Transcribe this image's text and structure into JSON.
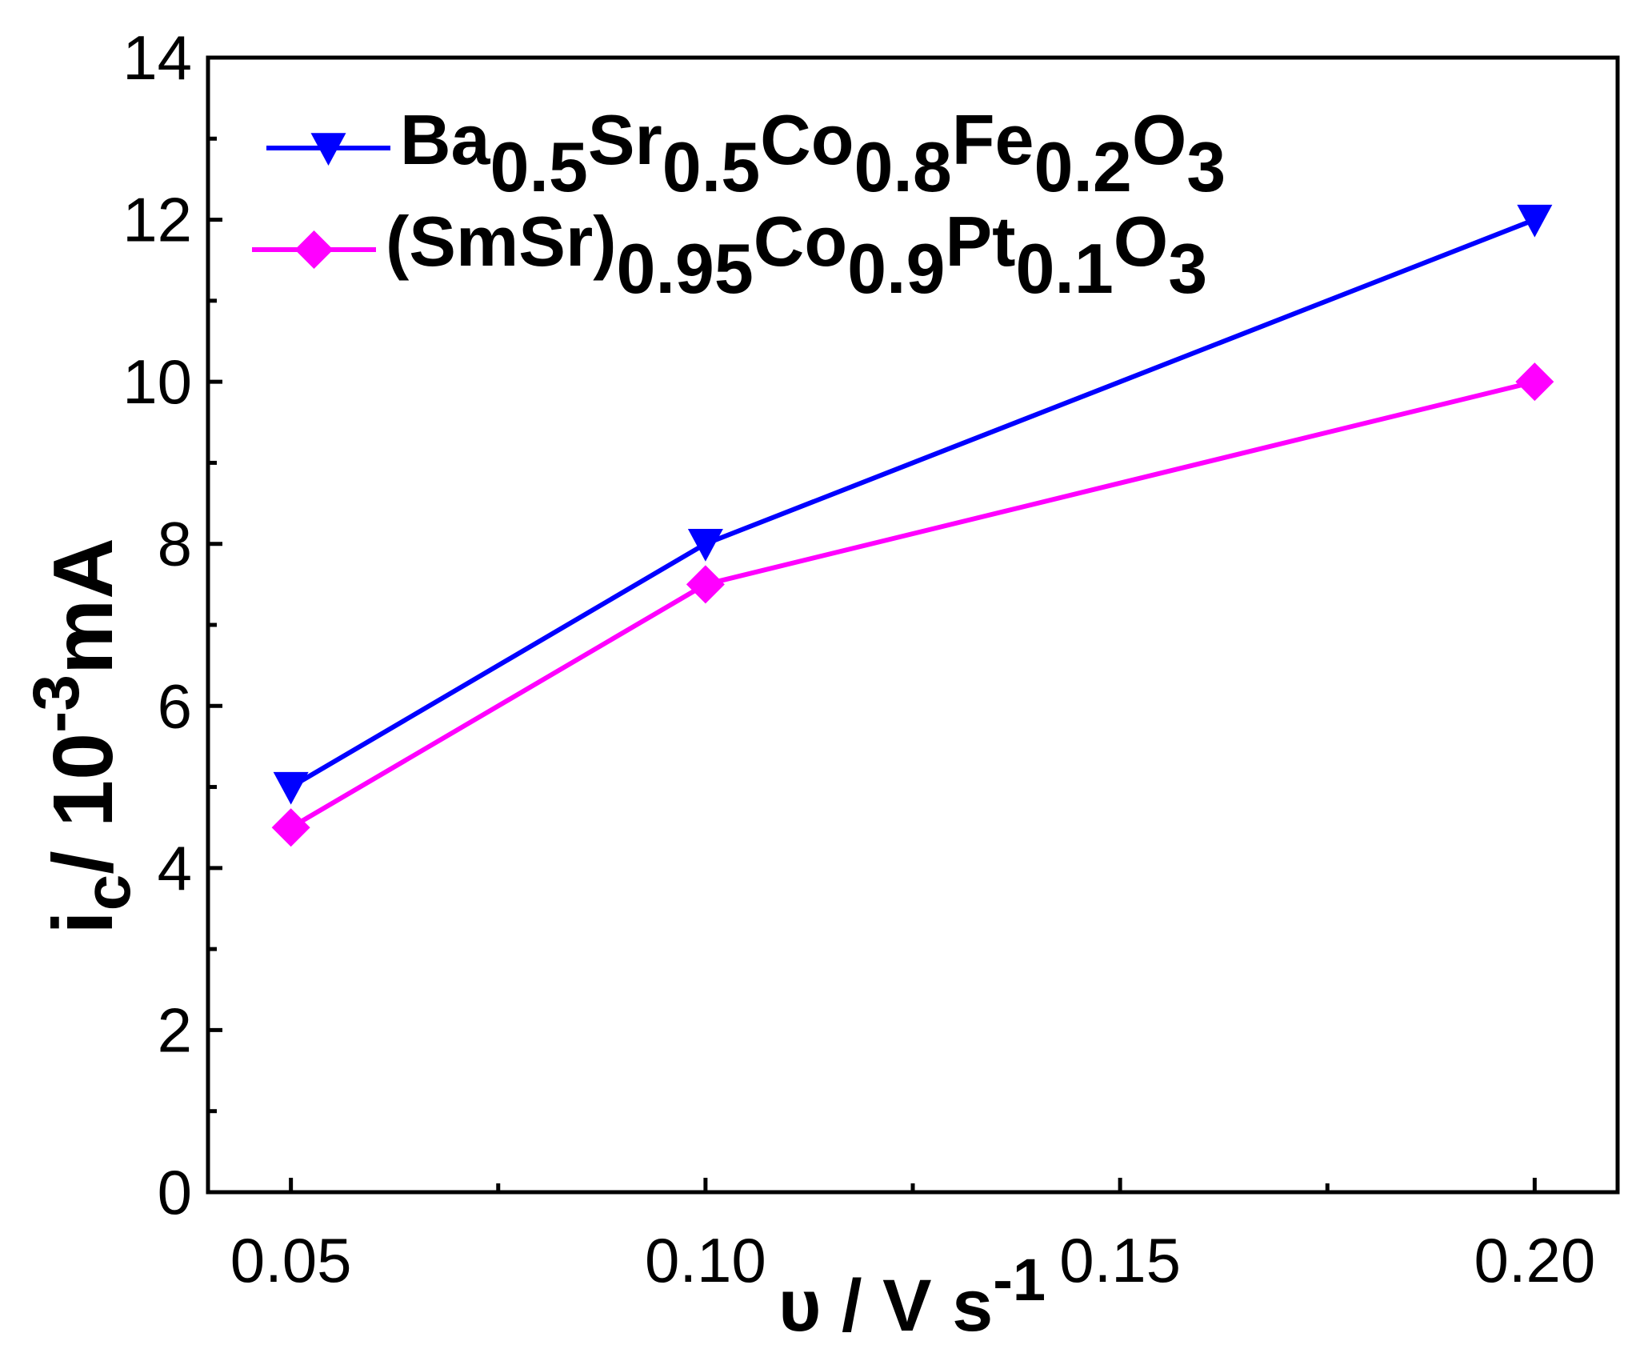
{
  "chart_data": {
    "type": "line",
    "title": "",
    "xlabel": {
      "main": "υ / V s",
      "sup": "-1"
    },
    "ylabel": {
      "main": "i",
      "sub": "c",
      "after_sub": "/ 10",
      "sup": "-3",
      "tail": "mA"
    },
    "xlim": [
      0.04,
      0.21
    ],
    "ylim": [
      0,
      14
    ],
    "x_ticks": [
      0.05,
      0.1,
      0.15,
      0.2
    ],
    "x_tick_labels": [
      "0.05",
      "0.10",
      "0.15",
      "0.20"
    ],
    "y_ticks": [
      0,
      2,
      4,
      6,
      8,
      10,
      12,
      14
    ],
    "y_tick_labels": [
      "0",
      "2",
      "4",
      "6",
      "8",
      "10",
      "12",
      "14"
    ],
    "legend_position": "top-left",
    "grid": false,
    "x": [
      0.05,
      0.1,
      0.2
    ],
    "series": [
      {
        "name": "Ba0.5Sr0.5Co0.8Fe0.2O3",
        "name_parts": [
          [
            "Ba",
            ""
          ],
          [
            "0.5",
            "sub"
          ],
          [
            "Sr",
            ""
          ],
          [
            "0.5",
            "sub"
          ],
          [
            "Co",
            ""
          ],
          [
            "0.8",
            "sub"
          ],
          [
            "Fe",
            ""
          ],
          [
            "0.2",
            "sub"
          ],
          [
            "O",
            ""
          ],
          [
            "3",
            "sub"
          ]
        ],
        "values": [
          5.0,
          8.0,
          12.0
        ],
        "color": "#0000ff",
        "marker": "triangle-down"
      },
      {
        "name": "(SmSr)0.95Co0.9Pt0.1O3",
        "name_parts": [
          [
            "(SmSr)",
            ""
          ],
          [
            "0.95",
            "sub"
          ],
          [
            "Co",
            ""
          ],
          [
            "0.9",
            "sub"
          ],
          [
            "Pt",
            ""
          ],
          [
            "0.1",
            "sub"
          ],
          [
            "O",
            ""
          ],
          [
            "3",
            "sub"
          ]
        ],
        "values": [
          4.5,
          7.5,
          10.0
        ],
        "color": "#ff00ff",
        "marker": "diamond"
      }
    ]
  }
}
